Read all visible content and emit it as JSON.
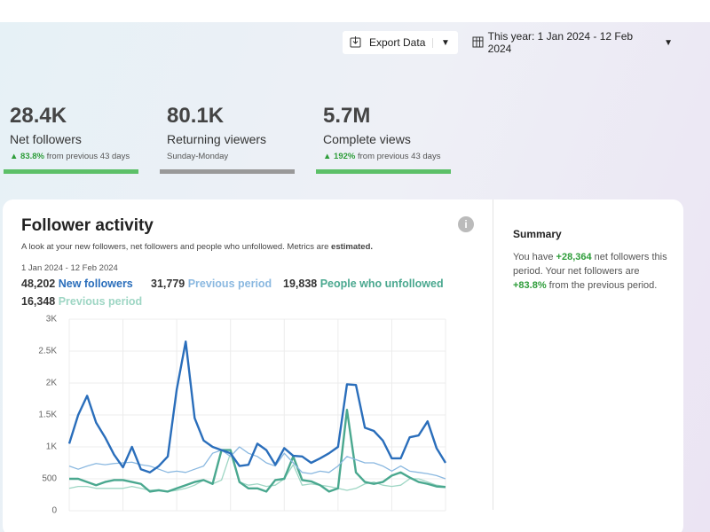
{
  "toolbar": {
    "export_label": "Export Data",
    "date_range": "This year: 1 Jan 2024 - 12 Feb 2024"
  },
  "kpis": [
    {
      "value": "28.4K",
      "label": "Net followers",
      "change": "83.8%",
      "note": "from previous 43 days"
    },
    {
      "value": "80.1K",
      "label": "Returning viewers",
      "note": "Sunday-Monday"
    },
    {
      "value": "5.7M",
      "label": "Complete views",
      "change": "192%",
      "note": "from previous 43 days"
    }
  ],
  "card": {
    "title": "Follower activity",
    "subtitle": "A look at your new followers, net followers and people who unfollowed. Metrics are ",
    "subtitle_emphasis": "estimated.",
    "date": "1 Jan 2024 - 12 Feb 2024"
  },
  "summary": {
    "title": "Summary",
    "parts": [
      "You have ",
      "+28,364",
      " net followers this period. Your net followers are ",
      "+83.8%",
      " from the previous period."
    ]
  },
  "chart_data": {
    "type": "line",
    "categories": [
      null,
      null,
      null,
      null,
      null,
      null,
      null,
      null,
      null,
      null,
      null,
      null,
      null,
      null,
      null,
      null,
      null,
      null,
      null,
      null,
      null,
      null,
      null,
      null,
      null,
      null,
      null,
      null,
      null,
      null,
      null,
      null,
      null,
      null,
      null,
      null,
      null,
      null,
      null,
      null,
      null,
      null,
      null
    ],
    "series": [
      {
        "name": "New followers",
        "total": "48,202",
        "color": "#2a6ebb",
        "values": [
          1050,
          1500,
          1800,
          1380,
          1150,
          880,
          680,
          1000,
          650,
          600,
          700,
          850,
          1900,
          2650,
          1450,
          1100,
          1000,
          950,
          900,
          700,
          720,
          1050,
          950,
          720,
          980,
          860,
          850,
          750,
          820,
          900,
          1000,
          1980,
          1970,
          1300,
          1250,
          1100,
          820,
          820,
          1150,
          1180,
          1400,
          980,
          750
        ]
      },
      {
        "name": "Previous period",
        "total": "31,779",
        "color": "#8ab8e0",
        "values": [
          700,
          650,
          700,
          740,
          720,
          740,
          750,
          760,
          720,
          700,
          650,
          600,
          620,
          600,
          650,
          700,
          900,
          950,
          850,
          1000,
          900,
          850,
          750,
          700,
          900,
          750,
          600,
          580,
          620,
          600,
          700,
          850,
          800,
          750,
          750,
          700,
          620,
          700,
          620,
          600,
          580,
          550,
          500
        ]
      },
      {
        "name": "People who unfollowed",
        "total": "19,838",
        "color": "#4aa88f",
        "values": [
          500,
          500,
          450,
          400,
          450,
          480,
          480,
          450,
          420,
          300,
          320,
          300,
          350,
          400,
          450,
          480,
          420,
          950,
          950,
          450,
          350,
          350,
          300,
          480,
          500,
          850,
          480,
          460,
          400,
          300,
          350,
          1580,
          600,
          450,
          420,
          450,
          550,
          600,
          520,
          450,
          420,
          380,
          370
        ]
      },
      {
        "name": "Previous period",
        "total": "16,348",
        "color": "#9ed6c4",
        "values": [
          350,
          380,
          380,
          350,
          350,
          350,
          350,
          380,
          350,
          320,
          330,
          300,
          320,
          350,
          400,
          480,
          420,
          480,
          900,
          450,
          400,
          420,
          380,
          400,
          500,
          720,
          400,
          420,
          400,
          380,
          350,
          320,
          350,
          420,
          450,
          400,
          380,
          400,
          500,
          500,
          450,
          400,
          380
        ]
      }
    ],
    "ylim": [
      0,
      3000
    ],
    "yticks": [
      0,
      500,
      {
        "value": 1000,
        "label": "1K"
      },
      {
        "value": 1500,
        "label": "1.5K"
      },
      {
        "value": 2000,
        "label": "2K"
      },
      {
        "value": 2500,
        "label": "2.5K"
      },
      {
        "value": 3000,
        "label": "3K"
      }
    ],
    "grid": true
  }
}
